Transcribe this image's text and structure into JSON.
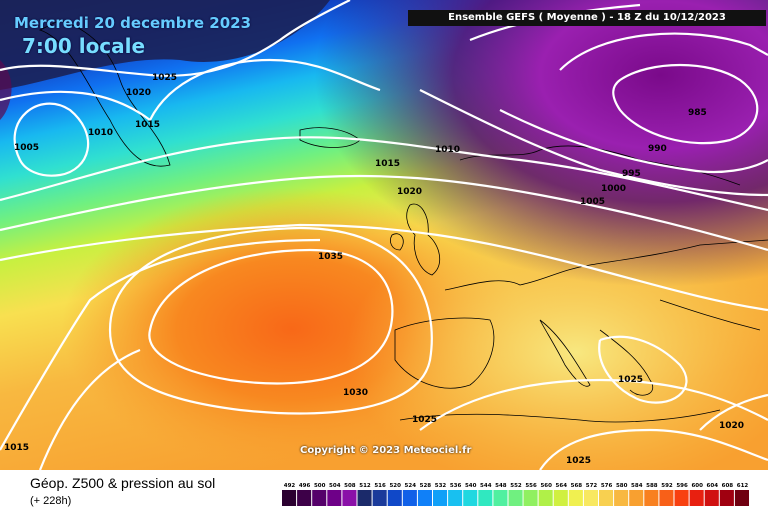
{
  "header": {
    "date": "Mercredi 20 decembre 2023",
    "time": "7:00 locale",
    "model": "Ensemble GEFS  ( Moyenne )  -  18 Z du 10/12/2023"
  },
  "footer": {
    "title": "Géop. Z500 & pression au sol",
    "subtitle": "(+ 228h)",
    "copyright": "Copyright © 2023 Meteociel.fr"
  },
  "isobar_labels": [
    {
      "text": "1025"
    },
    {
      "text": "1020"
    },
    {
      "text": "1015"
    },
    {
      "text": "1010"
    },
    {
      "text": "1005"
    },
    {
      "text": "1015"
    },
    {
      "text": "1010"
    },
    {
      "text": "1020"
    },
    {
      "text": "1035"
    },
    {
      "text": "985"
    },
    {
      "text": "990"
    },
    {
      "text": "995"
    },
    {
      "text": "1000"
    },
    {
      "text": "1005"
    },
    {
      "text": "1030"
    },
    {
      "text": "1025"
    },
    {
      "text": "1025"
    },
    {
      "text": "1025"
    },
    {
      "text": "1020"
    },
    {
      "text": "1015"
    }
  ],
  "scale": {
    "values": [
      "492",
      "496",
      "500",
      "504",
      "508",
      "512",
      "516",
      "520",
      "524",
      "528",
      "532",
      "536",
      "540",
      "544",
      "548",
      "552",
      "556",
      "560",
      "564",
      "568",
      "572",
      "576",
      "580",
      "584",
      "588",
      "592",
      "596",
      "600",
      "604",
      "608",
      "612"
    ],
    "colors": [
      "#2b0030",
      "#3d0048",
      "#55006a",
      "#6e0088",
      "#8a10a8",
      "#1b2a6a",
      "#1a3a9a",
      "#1048c8",
      "#1060e8",
      "#1080f8",
      "#10a0f8",
      "#18c0f0",
      "#20d8e0",
      "#30e8c0",
      "#50f0a0",
      "#70f080",
      "#90f060",
      "#b0f048",
      "#d0f040",
      "#f0f050",
      "#f8e860",
      "#f8d050",
      "#f8b840",
      "#f8a030",
      "#f88020",
      "#f86018",
      "#f84010",
      "#e82010",
      "#d01010",
      "#a00010",
      "#700010"
    ]
  }
}
